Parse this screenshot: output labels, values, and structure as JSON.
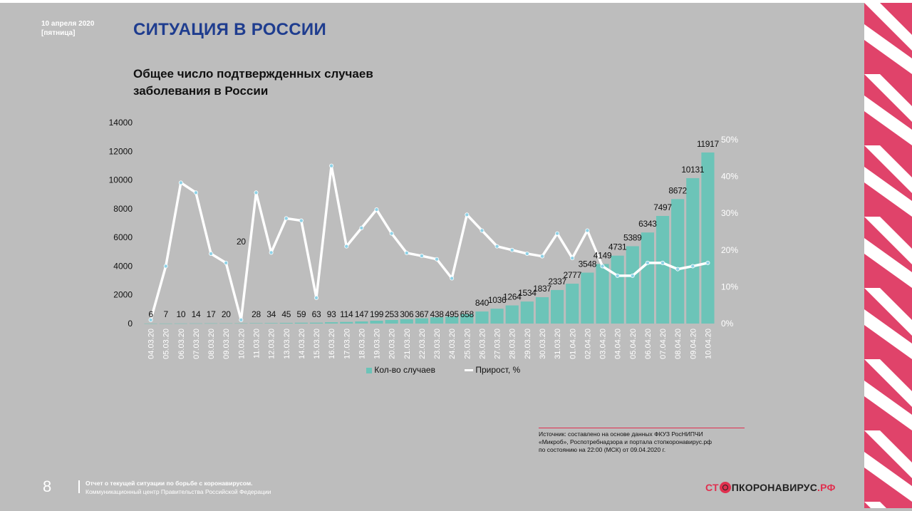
{
  "header": {
    "date_line1": "10 апреля 2020",
    "date_line2": "[пятница]",
    "title": "СИТУАЦИЯ В РОССИИ",
    "subtitle": "Общее число подтвержденных случаев заболевания в России"
  },
  "chart_data": {
    "type": "bar",
    "title": "Общее число подтвержденных случаев заболевания в России",
    "categories": [
      "04.03.20",
      "05.03.20",
      "06.03.20",
      "07.03.20",
      "08.03.20",
      "09.03.20",
      "10.03.20",
      "11.03.20",
      "12.03.20",
      "13.03.20",
      "14.03.20",
      "15.03.20",
      "16.03.20",
      "17.03.20",
      "18.03.20",
      "19.03.20",
      "20.03.20",
      "21.03.20",
      "22.03.20",
      "23.03.20",
      "24.03.20",
      "25.03.20",
      "26.03.20",
      "27.03.20",
      "28.03.20",
      "29.03.20",
      "30.03.20",
      "31.03.20",
      "01.04.20",
      "02.04.20",
      "03.04.20",
      "04.04.20",
      "05.04.20",
      "06.04.20",
      "07.04.20",
      "08.04.20",
      "09.04.20",
      "10.04.20"
    ],
    "series": [
      {
        "name": "Кол-во случаев",
        "axis": "left",
        "values": [
          6,
          7,
          10,
          14,
          17,
          20,
          20,
          28,
          34,
          45,
          59,
          63,
          93,
          114,
          147,
          199,
          253,
          306,
          367,
          438,
          495,
          658,
          840,
          1036,
          1264,
          1534,
          1837,
          2337,
          2777,
          3548,
          4149,
          4731,
          5389,
          6343,
          7497,
          8672,
          10131,
          11917
        ],
        "labels": [
          "6",
          "7",
          "10",
          "14",
          "17",
          "20",
          "20",
          "28",
          "34",
          "45",
          "59",
          "63",
          "93",
          "114",
          "147",
          "199",
          "253",
          "306",
          "367",
          "438",
          "495",
          "658",
          "840",
          "1036",
          "1264",
          "1534",
          "1837",
          "2337",
          "2777",
          "3548",
          "4149",
          "4731",
          "5389",
          "6343",
          "7497",
          "8672",
          "10131",
          "11917"
        ]
      },
      {
        "name": "Прирост, %",
        "axis": "right",
        "type": "line",
        "values": [
          1,
          15.6,
          38.3,
          35.6,
          19,
          16.5,
          1,
          35.6,
          19.3,
          28.6,
          28,
          7,
          42.9,
          21,
          26,
          31,
          24.5,
          19.2,
          18.4,
          17.5,
          12.3,
          29.6,
          25.3,
          21,
          20,
          19,
          18.3,
          24.5,
          17.8,
          25.3,
          15.6,
          13,
          13,
          16.5,
          16.5,
          14.8,
          15.6,
          16.5
        ]
      }
    ],
    "y_left": {
      "min": 0,
      "max": 14000,
      "ticks": [
        "0",
        "2000",
        "4000",
        "6000",
        "8000",
        "10000",
        "12000",
        "14000"
      ]
    },
    "y_right": {
      "min": 0,
      "max": 55,
      "ticks": [
        "0%",
        "10%",
        "20%",
        "30%",
        "40%",
        "50%"
      ]
    },
    "legend_position": "bottom-center",
    "colors": {
      "bars": "#6cc4b8",
      "line": "#ffffff",
      "marker": "#8fd3e8"
    }
  },
  "legend": {
    "bars_label": "Кол-во случаев",
    "line_label": "Прирост, %"
  },
  "source": {
    "line1": "Источник: составлено на основе данных ФКУЗ РосНИПЧИ",
    "line2": "«Микроб», Роспотребнадзора и портала стопкоронавирус.рф",
    "line3": "по состоянию на 22:00 (МСК) от 09.04.2020 г."
  },
  "footer": {
    "page_number": "8",
    "line1": "Отчет о текущей ситуации по борьбе с коронавирусом.",
    "line2": "Коммуникационный центр Правительства Российской Федерации",
    "logo_part1": "СТ",
    "logo_part2": "ПКОРОНАВИРУС",
    "logo_part3": ".РФ"
  },
  "colors": {
    "accent": "#e0304f",
    "title": "#1f3d8f",
    "background": "#bdbdbd"
  }
}
